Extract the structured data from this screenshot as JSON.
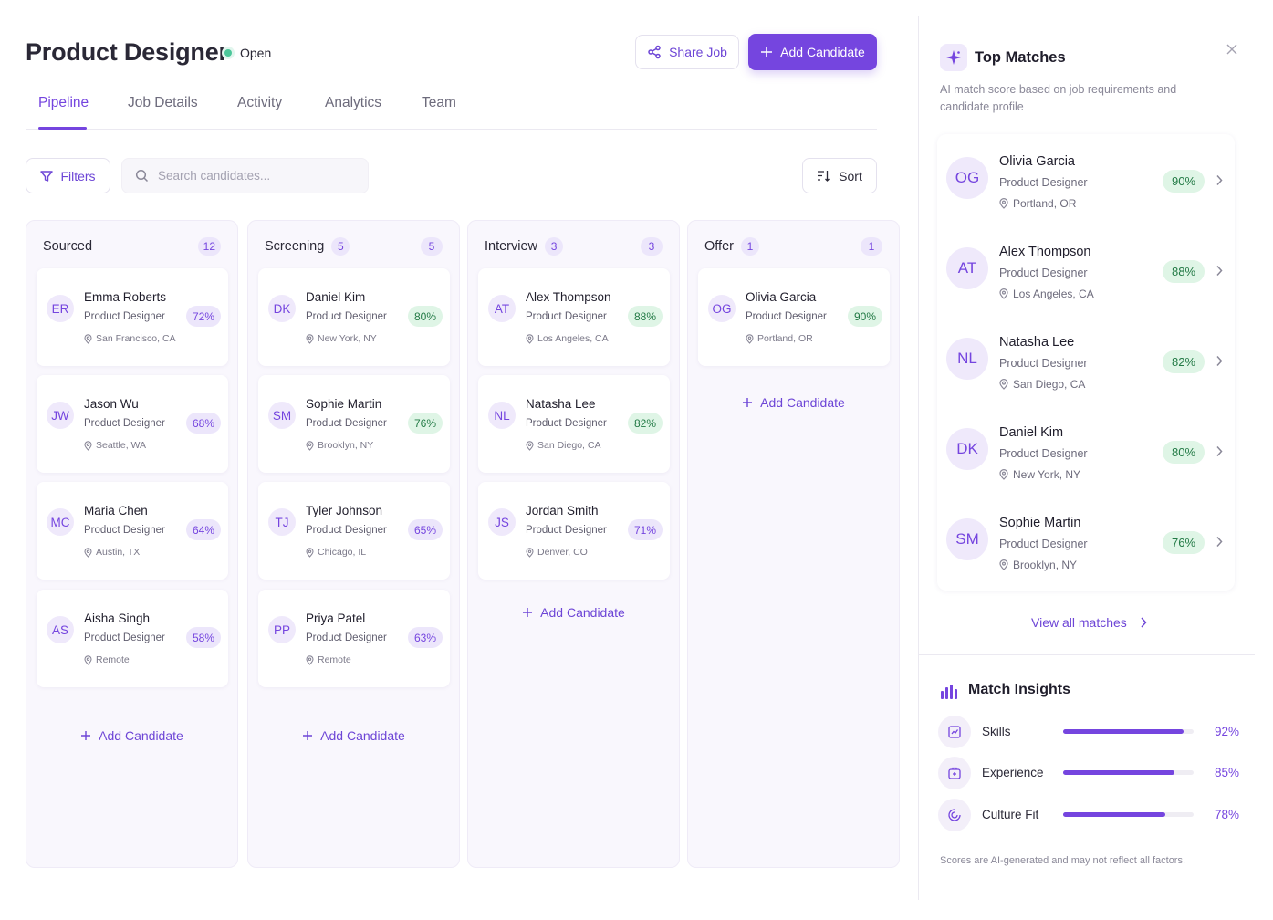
{
  "header": {
    "title": "Product Designer",
    "status": "Open",
    "share_label": "Share Job",
    "add_label": "Add Candidate",
    "status_color": "#4cc79a",
    "accent": "#7545df"
  },
  "tabs": [
    "Pipeline",
    "Job Details",
    "Activity",
    "Analytics",
    "Team"
  ],
  "toolbar": {
    "filters_label": "Filters",
    "search_placeholder": "Search candidates...",
    "sort_label": "Sort"
  },
  "columns": [
    {
      "name": "Sourced",
      "count_inline": "",
      "count": "12",
      "add_label": "Add Candidate",
      "cards": [
        {
          "initials": "ER",
          "name": "Emma Roberts",
          "role": "Product Designer",
          "location": "San Francisco, CA",
          "score": "72%",
          "score_style": "purple"
        },
        {
          "initials": "JW",
          "name": "Jason Wu",
          "role": "Product Designer",
          "location": "Seattle, WA",
          "score": "68%",
          "score_style": "purple"
        },
        {
          "initials": "MC",
          "name": "Maria Chen",
          "role": "Product Designer",
          "location": "Austin, TX",
          "score": "64%",
          "score_style": "purple"
        },
        {
          "initials": "AS",
          "name": "Aisha Singh",
          "role": "Product Designer",
          "location": "Remote",
          "score": "58%",
          "score_style": "purple"
        }
      ]
    },
    {
      "name": "Screening",
      "count_inline": "5",
      "count": "5",
      "add_label": "Add Candidate",
      "cards": [
        {
          "initials": "DK",
          "name": "Daniel Kim",
          "role": "Product Designer",
          "location": "New York, NY",
          "score": "80%",
          "score_style": "green"
        },
        {
          "initials": "SM",
          "name": "Sophie Martin",
          "role": "Product Designer",
          "location": "Brooklyn, NY",
          "score": "76%",
          "score_style": "green"
        },
        {
          "initials": "TJ",
          "name": "Tyler Johnson",
          "role": "Product Designer",
          "location": "Chicago, IL",
          "score": "65%",
          "score_style": "purple"
        },
        {
          "initials": "PP",
          "name": "Priya Patel",
          "role": "Product Designer",
          "location": "Remote",
          "score": "63%",
          "score_style": "purple"
        }
      ]
    },
    {
      "name": "Interview",
      "count_inline": "3",
      "count": "3",
      "add_label": "Add Candidate",
      "cards": [
        {
          "initials": "AT",
          "name": "Alex Thompson",
          "role": "Product Designer",
          "location": "Los Angeles, CA",
          "score": "88%",
          "score_style": "green"
        },
        {
          "initials": "NL",
          "name": "Natasha Lee",
          "role": "Product Designer",
          "location": "San Diego, CA",
          "score": "82%",
          "score_style": "green"
        },
        {
          "initials": "JS",
          "name": "Jordan Smith",
          "role": "Product Designer",
          "location": "Denver, CO",
          "score": "71%",
          "score_style": "purple"
        }
      ]
    },
    {
      "name": "Offer",
      "count_inline": "1",
      "count": "1",
      "add_label": "Add Candidate",
      "cards": [
        {
          "initials": "OG",
          "name": "Olivia Garcia",
          "role": "Product Designer",
          "location": "Portland, OR",
          "score": "90%",
          "score_style": "green"
        }
      ]
    }
  ],
  "panel": {
    "title": "Top Matches",
    "subtitle": "AI match score based on job requirements and candidate profile",
    "matches": [
      {
        "initials": "OG",
        "name": "Olivia Garcia",
        "role": "Product Designer",
        "location": "Portland, OR",
        "score": "90%"
      },
      {
        "initials": "AT",
        "name": "Alex Thompson",
        "role": "Product Designer",
        "location": "Los Angeles, CA",
        "score": "88%"
      },
      {
        "initials": "NL",
        "name": "Natasha Lee",
        "role": "Product Designer",
        "location": "San Diego, CA",
        "score": "82%"
      },
      {
        "initials": "DK",
        "name": "Daniel Kim",
        "role": "Product Designer",
        "location": "New York, NY",
        "score": "80%"
      },
      {
        "initials": "SM",
        "name": "Sophie Martin",
        "role": "Product Designer",
        "location": "Brooklyn, NY",
        "score": "76%"
      }
    ],
    "view_all_label": "View all matches",
    "insights_title": "Match Insights",
    "insights": [
      {
        "label": "Skills",
        "value": "92%",
        "fraction": 0.92,
        "icon": "skills-icon"
      },
      {
        "label": "Experience",
        "value": "85%",
        "fraction": 0.85,
        "icon": "experience-icon"
      },
      {
        "label": "Culture Fit",
        "value": "78%",
        "fraction": 0.78,
        "icon": "culture-fit-icon"
      }
    ],
    "footnote": "Scores are AI-generated and may not reflect all factors."
  }
}
